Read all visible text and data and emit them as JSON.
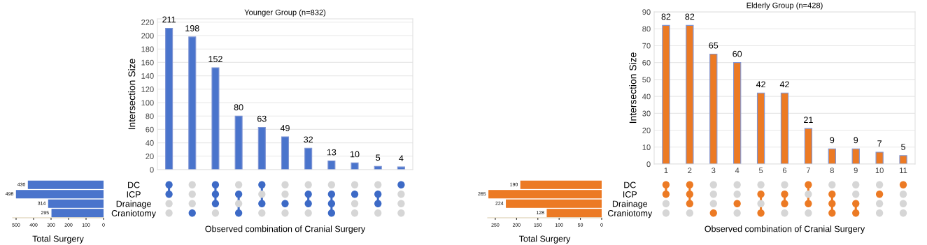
{
  "chart_data": [
    {
      "type": "bar",
      "title": "Younger Group (n=832)",
      "ylabel": "Intersection Size",
      "categories": [
        null,
        null,
        null,
        null,
        null,
        null,
        null,
        null,
        null,
        null,
        null
      ],
      "values": [
        211,
        198,
        152,
        80,
        63,
        49,
        32,
        13,
        10,
        5,
        4
      ],
      "color": "#4a74cc",
      "data_labels": true,
      "ylim": [
        0,
        225
      ],
      "yticks": [
        0,
        20,
        40,
        60,
        80,
        100,
        120,
        140,
        160,
        180,
        200,
        220
      ],
      "grid": "y",
      "tick_labels": "y"
    },
    {
      "type": "bar",
      "orientation": "horizontal",
      "xlabel": "Total Surgery",
      "categories": [
        "DC",
        "ICP",
        "Drainage",
        "Craniotomy"
      ],
      "values": [
        430,
        498,
        314,
        295
      ],
      "color": "#4a74cc",
      "data_labels": true,
      "xlim": [
        520,
        0
      ],
      "xticks": [
        500,
        400,
        300,
        200,
        100,
        0
      ]
    },
    {
      "type": "other",
      "xlabel": "Observed combination of Cranial Surgery",
      "colors": [
        "#d6d6d6",
        "#3d6ac6"
      ],
      "cells": [
        [
          true,
          false,
          true,
          false,
          true,
          false,
          false,
          false,
          false,
          false,
          true
        ],
        [
          true,
          false,
          true,
          true,
          false,
          false,
          true,
          true,
          true,
          true,
          false
        ],
        [
          false,
          false,
          true,
          false,
          true,
          true,
          true,
          true,
          false,
          true,
          false
        ],
        [
          false,
          true,
          false,
          true,
          false,
          false,
          false,
          true,
          false,
          false,
          false
        ]
      ]
    },
    {
      "type": "bar",
      "title": "Elderly Group (n=428)",
      "ylabel": "Intersection Size",
      "categories": [
        "1",
        "2",
        "3",
        "4",
        "5",
        "6",
        "7",
        "8",
        "9",
        "10",
        "11"
      ],
      "values": [
        82,
        82,
        65,
        60,
        42,
        42,
        21,
        9,
        9,
        7,
        5
      ],
      "color": "#ec7a24",
      "data_labels": true,
      "ylim": [
        0,
        90
      ],
      "yticks": [
        0,
        10,
        20,
        30,
        40,
        50,
        60,
        70,
        80,
        90
      ],
      "grid": "y"
    },
    {
      "type": "bar",
      "orientation": "horizontal",
      "xlabel": "Total Surgery",
      "categories": [
        "DC",
        "ICP",
        "Drainage",
        "Craniotomy"
      ],
      "values": [
        190,
        265,
        224,
        128
      ],
      "color": "#ec7a24",
      "data_labels": true,
      "xlim": [
        268,
        0
      ],
      "xticks": [
        250,
        200,
        150,
        100,
        50,
        0
      ]
    },
    {
      "type": "other",
      "xlabel": "Observed combination of Cranial Surgery",
      "colors": [
        "#d6d6d6",
        "#ec7a24"
      ],
      "cells": [
        [
          true,
          true,
          false,
          false,
          false,
          false,
          true,
          false,
          false,
          false,
          true
        ],
        [
          true,
          true,
          false,
          false,
          true,
          true,
          false,
          true,
          false,
          true,
          false
        ],
        [
          false,
          true,
          false,
          true,
          false,
          true,
          true,
          true,
          true,
          false,
          false
        ],
        [
          false,
          false,
          true,
          false,
          true,
          false,
          false,
          true,
          true,
          false,
          false
        ]
      ]
    }
  ]
}
